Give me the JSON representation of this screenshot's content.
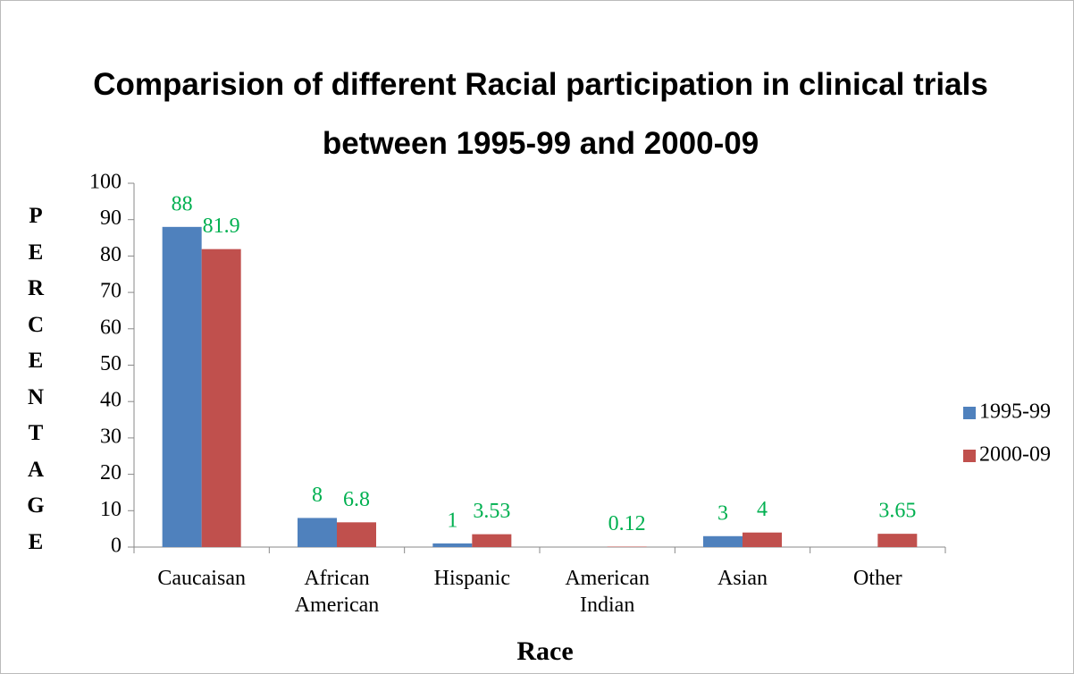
{
  "chart_data": {
    "type": "bar",
    "title": "Comparision of different Racial participation in clinical trials between 1995-99 and 2000-09",
    "x_label": "Race",
    "y_label": "PERCENTAGE",
    "categories": [
      "Caucaisan",
      "African American",
      "Hispanic",
      "American Indian",
      "Asian",
      "Other"
    ],
    "series": [
      {
        "name": "1995-99",
        "color": "#4f81bd",
        "values": [
          88,
          8,
          1,
          null,
          3,
          null
        ]
      },
      {
        "name": "2000-09",
        "color": "#c0504d",
        "values": [
          81.9,
          6.8,
          3.53,
          0.12,
          4,
          3.65
        ]
      }
    ],
    "ylim": [
      0,
      100
    ],
    "yticks": [
      0,
      10,
      20,
      30,
      40,
      50,
      60,
      70,
      80,
      90,
      100
    ],
    "legend": "right",
    "value_label_color": "#00b050"
  }
}
